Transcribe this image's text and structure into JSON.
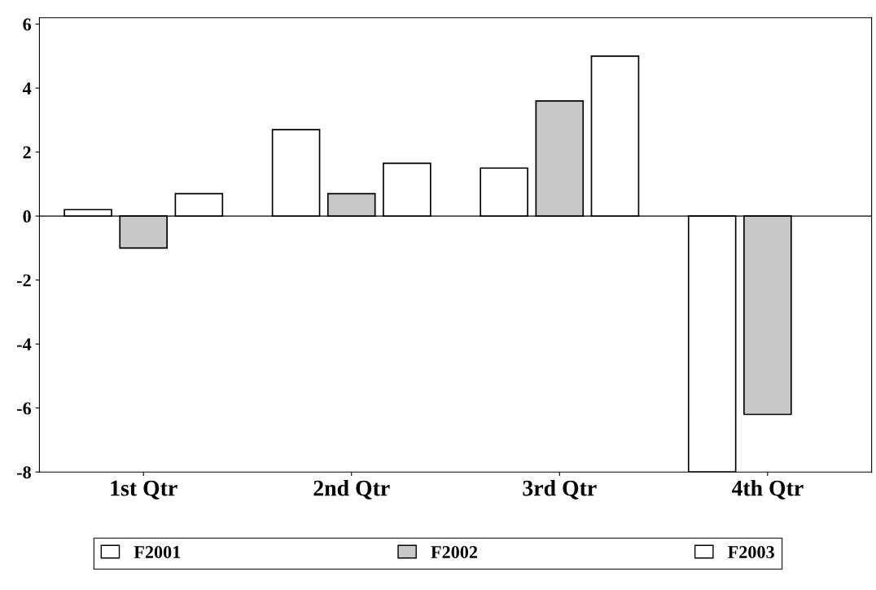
{
  "chart_data": {
    "type": "bar",
    "categories": [
      "1st Qtr",
      "2nd Qtr",
      "3rd Qtr",
      "4th Qtr"
    ],
    "series": [
      {
        "name": "F2001",
        "color": "#ffffff",
        "values": [
          0.2,
          2.7,
          1.5,
          -8
        ]
      },
      {
        "name": "F2002",
        "color": "#c8c8c8",
        "values": [
          -1.0,
          0.7,
          3.6,
          -6.2
        ]
      },
      {
        "name": "F2003",
        "color": "#ffffff",
        "values": [
          0.7,
          1.65,
          5.0,
          null
        ]
      }
    ],
    "ylim": [
      -8,
      6.2
    ],
    "yticks": [
      -8,
      -6,
      -4,
      -2,
      0,
      2,
      4,
      6
    ],
    "ref_lines": [
      {
        "axis": "y",
        "value": 0,
        "color": "#000000"
      }
    ],
    "legend": "bottom"
  }
}
